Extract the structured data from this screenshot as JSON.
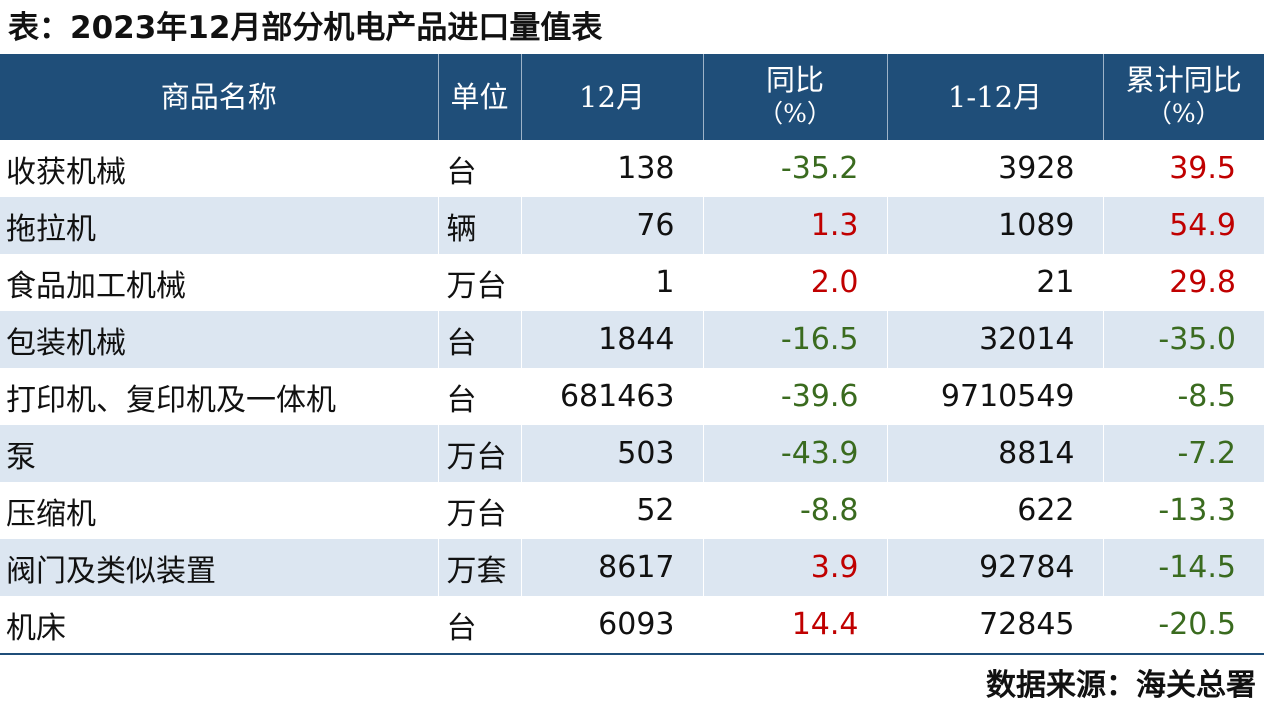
{
  "title": "表：2023年12月部分机电产品进口量值表",
  "source": "数据来源：海关总署",
  "colors": {
    "header_bg": "#1f4e79",
    "positive": "#c00000",
    "negative": "#3a6b1f",
    "stripe": "#dce6f1"
  },
  "chart_data": {
    "type": "table",
    "columns": [
      {
        "label": "商品名称",
        "sub": ""
      },
      {
        "label": "单位",
        "sub": ""
      },
      {
        "label": "12月",
        "sub": ""
      },
      {
        "label": "同比",
        "sub": "（%）"
      },
      {
        "label": "1-12月",
        "sub": ""
      },
      {
        "label": "累计同比",
        "sub": "（%）"
      }
    ],
    "rows": [
      {
        "name": "收获机械",
        "unit": "台",
        "dec": "138",
        "yoy": "-35.2",
        "ytd": "3928",
        "ytd_yoy": "39.5"
      },
      {
        "name": "拖拉机",
        "unit": "辆",
        "dec": "76",
        "yoy": "1.3",
        "ytd": "1089",
        "ytd_yoy": "54.9"
      },
      {
        "name": "食品加工机械",
        "unit": "万台",
        "dec": "1",
        "yoy": "2.0",
        "ytd": "21",
        "ytd_yoy": "29.8"
      },
      {
        "name": "包装机械",
        "unit": "台",
        "dec": "1844",
        "yoy": "-16.5",
        "ytd": "32014",
        "ytd_yoy": "-35.0"
      },
      {
        "name": "打印机、复印机及一体机",
        "unit": "台",
        "dec": "681463",
        "yoy": "-39.6",
        "ytd": "9710549",
        "ytd_yoy": "-8.5"
      },
      {
        "name": "泵",
        "unit": "万台",
        "dec": "503",
        "yoy": "-43.9",
        "ytd": "8814",
        "ytd_yoy": "-7.2"
      },
      {
        "name": "压缩机",
        "unit": "万台",
        "dec": "52",
        "yoy": "-8.8",
        "ytd": "622",
        "ytd_yoy": "-13.3"
      },
      {
        "name": "阀门及类似装置",
        "unit": "万套",
        "dec": "8617",
        "yoy": "3.9",
        "ytd": "92784",
        "ytd_yoy": "-14.5"
      },
      {
        "name": "机床",
        "unit": "台",
        "dec": "6093",
        "yoy": "14.4",
        "ytd": "72845",
        "ytd_yoy": "-20.5"
      }
    ]
  }
}
